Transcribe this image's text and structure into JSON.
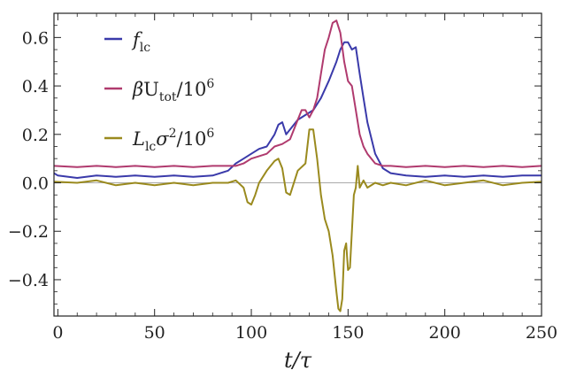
{
  "chart_data": {
    "type": "line",
    "title": "",
    "xlabel": "t/τ",
    "ylabel": "",
    "xlim": [
      -2,
      250
    ],
    "ylim": [
      -0.55,
      0.7
    ],
    "x_ticks": [
      0,
      50,
      100,
      150,
      200,
      250
    ],
    "y_ticks": [
      -0.4,
      -0.2,
      0.0,
      0.2,
      0.4,
      0.6
    ],
    "x_tick_labels": [
      "0",
      "50",
      "100",
      "150",
      "200",
      "250"
    ],
    "y_tick_labels": [
      "−0.4",
      "−0.2",
      "0.0",
      "0.2",
      "0.4",
      "0.6"
    ],
    "grid": false,
    "zero_line": true,
    "legend_position": "top-left",
    "series": [
      {
        "name": "f_lc",
        "legend_main": "f",
        "legend_sub": "lc",
        "color": "#3a3aaa",
        "x": [
          -2,
          0,
          10,
          20,
          30,
          40,
          50,
          60,
          70,
          80,
          88,
          92,
          96,
          100,
          104,
          108,
          112,
          114,
          116,
          118,
          120,
          124,
          128,
          132,
          136,
          140,
          144,
          146,
          148,
          150,
          152,
          154,
          156,
          158,
          160,
          164,
          168,
          172,
          180,
          190,
          200,
          210,
          220,
          230,
          240,
          250
        ],
        "y": [
          0.04,
          0.03,
          0.02,
          0.03,
          0.025,
          0.03,
          0.025,
          0.03,
          0.025,
          0.03,
          0.05,
          0.08,
          0.1,
          0.12,
          0.14,
          0.15,
          0.2,
          0.24,
          0.25,
          0.2,
          0.22,
          0.26,
          0.28,
          0.3,
          0.35,
          0.42,
          0.5,
          0.55,
          0.58,
          0.58,
          0.55,
          0.56,
          0.45,
          0.35,
          0.25,
          0.12,
          0.06,
          0.04,
          0.03,
          0.025,
          0.03,
          0.025,
          0.03,
          0.025,
          0.03,
          0.03
        ]
      },
      {
        "name": "βU_tot/10^6",
        "legend_main": "βU",
        "legend_sub": "tot",
        "legend_tail": "/10",
        "legend_sup": "6",
        "color": "#b03a6e",
        "x": [
          -2,
          10,
          20,
          30,
          40,
          50,
          60,
          70,
          80,
          88,
          92,
          96,
          100,
          104,
          108,
          112,
          116,
          120,
          124,
          126,
          128,
          130,
          132,
          134,
          136,
          138,
          140,
          142,
          144,
          146,
          148,
          150,
          152,
          154,
          156,
          158,
          160,
          164,
          168,
          172,
          180,
          190,
          200,
          210,
          220,
          230,
          240,
          250
        ],
        "y": [
          0.07,
          0.065,
          0.07,
          0.065,
          0.07,
          0.065,
          0.07,
          0.065,
          0.07,
          0.07,
          0.07,
          0.08,
          0.1,
          0.11,
          0.12,
          0.15,
          0.16,
          0.18,
          0.26,
          0.3,
          0.3,
          0.27,
          0.3,
          0.35,
          0.45,
          0.55,
          0.6,
          0.66,
          0.67,
          0.62,
          0.5,
          0.42,
          0.4,
          0.3,
          0.2,
          0.15,
          0.12,
          0.08,
          0.07,
          0.07,
          0.065,
          0.07,
          0.065,
          0.07,
          0.065,
          0.07,
          0.065,
          0.07
        ]
      },
      {
        "name": "L_lc σ^2/10^6",
        "legend_main": "L",
        "legend_sub": "lc",
        "legend_tail": "σ",
        "legend_sup": "2",
        "legend_tail2": "/10",
        "legend_sup2": "6",
        "color": "#9a8a1e",
        "x": [
          -2,
          10,
          20,
          30,
          40,
          50,
          60,
          70,
          80,
          88,
          92,
          96,
          98,
          100,
          102,
          104,
          108,
          112,
          114,
          116,
          118,
          120,
          124,
          128,
          130,
          132,
          134,
          136,
          138,
          140,
          142,
          144,
          145,
          146,
          147,
          148,
          149,
          150,
          151,
          152,
          153,
          154,
          155,
          156,
          158,
          160,
          164,
          168,
          172,
          180,
          190,
          200,
          210,
          220,
          230,
          240,
          250
        ],
        "y": [
          0.005,
          0.0,
          0.01,
          -0.01,
          0.0,
          -0.01,
          0.0,
          -0.01,
          0.0,
          0.0,
          0.01,
          -0.02,
          -0.08,
          -0.09,
          -0.05,
          0.0,
          0.05,
          0.09,
          0.1,
          0.06,
          -0.04,
          -0.05,
          0.05,
          0.08,
          0.22,
          0.22,
          0.1,
          -0.05,
          -0.15,
          -0.2,
          -0.3,
          -0.45,
          -0.52,
          -0.53,
          -0.48,
          -0.28,
          -0.25,
          -0.36,
          -0.35,
          -0.2,
          -0.05,
          -0.02,
          0.07,
          -0.02,
          0.01,
          -0.02,
          0.0,
          -0.01,
          0.0,
          -0.01,
          0.01,
          -0.01,
          0.0,
          0.01,
          -0.01,
          0.0,
          0.005
        ]
      }
    ]
  }
}
